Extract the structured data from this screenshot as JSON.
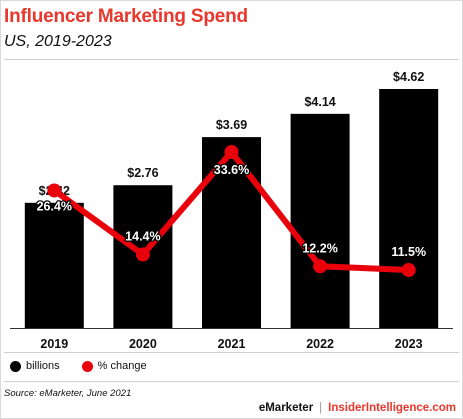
{
  "header": {
    "title": "Influencer Marketing Spend",
    "subtitle": "US, 2019-2023"
  },
  "chart_data": {
    "type": "bar",
    "categories": [
      "2019",
      "2020",
      "2021",
      "2022",
      "2023"
    ],
    "series": [
      {
        "name": "billions",
        "kind": "bar",
        "values": [
          2.42,
          2.76,
          3.69,
          4.14,
          4.62
        ],
        "labels": [
          "$2.42",
          "$2.76",
          "$3.69",
          "$4.14",
          "$4.62"
        ],
        "color": "#000000"
      },
      {
        "name": "% change",
        "kind": "line",
        "values": [
          26.4,
          14.4,
          33.6,
          12.2,
          11.5
        ],
        "labels": [
          "26.4%",
          "14.4%",
          "33.6%",
          "12.2%",
          "11.5%"
        ],
        "color": "#e8000b"
      }
    ],
    "legend_position": "bottom-left",
    "grid": false
  },
  "legend": {
    "items": [
      {
        "label": "billions",
        "color": "#000000"
      },
      {
        "label": "% change",
        "color": "#e8000b"
      }
    ]
  },
  "source": "Source: eMarketer, June 2021",
  "footer": {
    "brand": "eMarketer",
    "separator": "|",
    "site": "InsiderIntelligence.com"
  },
  "colors": {
    "accent": "#e8372c",
    "bar": "#000000",
    "line": "#e8000b"
  }
}
